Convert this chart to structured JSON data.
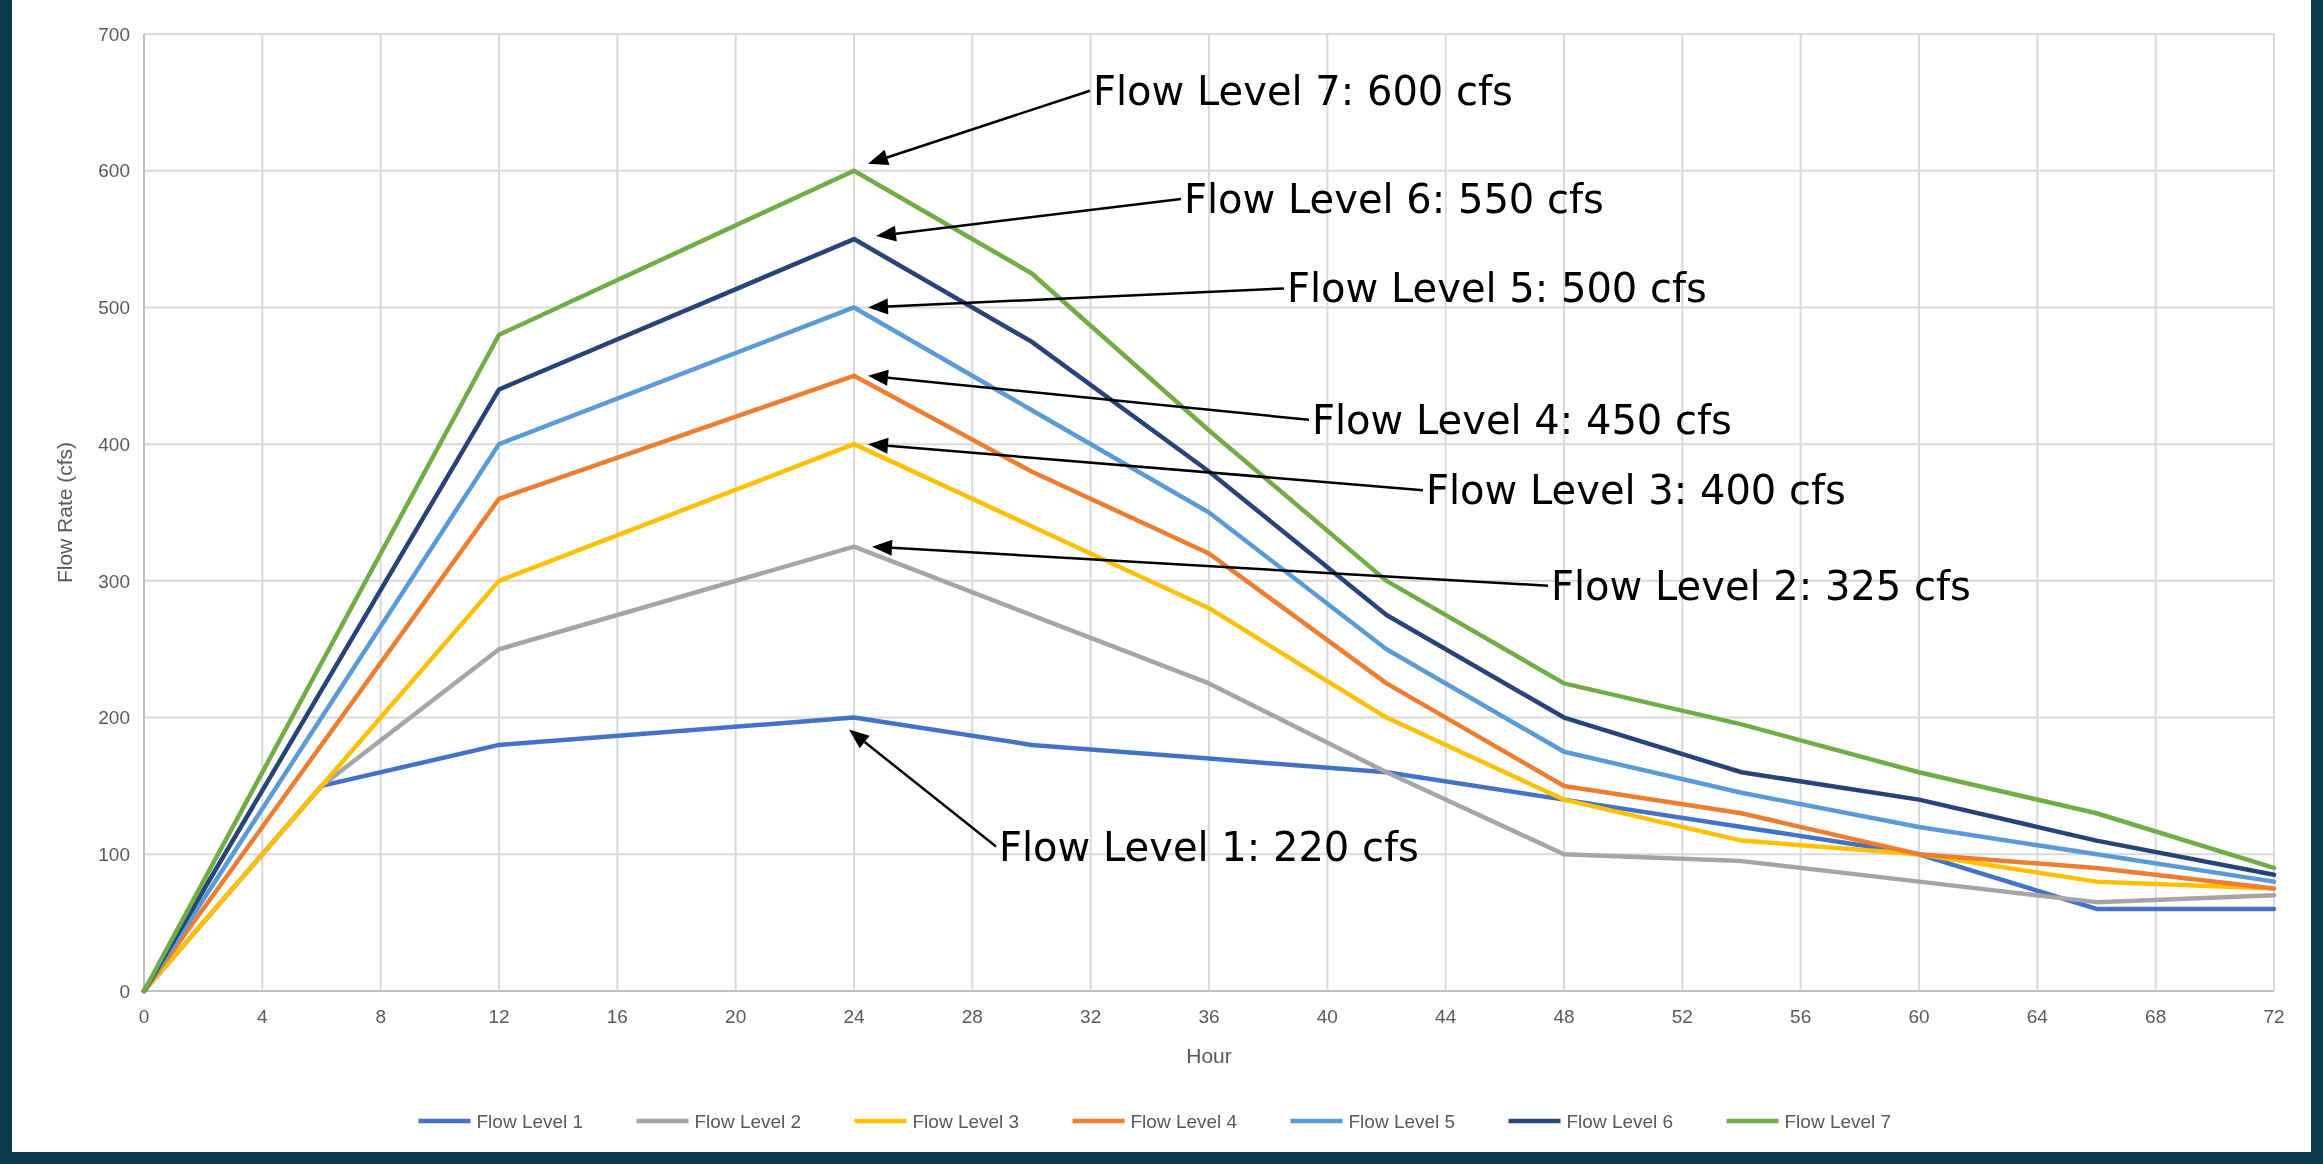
{
  "chart_data": {
    "type": "line",
    "xlabel": "Hour",
    "ylabel": "Flow Rate (cfs)",
    "xlim": [
      0,
      72
    ],
    "xticks": [
      0,
      4,
      8,
      12,
      16,
      20,
      24,
      28,
      32,
      36,
      40,
      44,
      48,
      52,
      56,
      60,
      64,
      68,
      72
    ],
    "ylim": [
      0,
      700
    ],
    "yticks": [
      0,
      100,
      200,
      300,
      400,
      500,
      600,
      700
    ],
    "grid": true,
    "legend": "bottom",
    "marker": "none",
    "line_style": "solid",
    "series": [
      {
        "name": "Flow Level 1",
        "color": "#4472c4",
        "x": [
          0,
          6,
          12,
          24,
          30,
          36,
          42,
          48,
          54,
          60,
          66,
          72
        ],
        "values": [
          0,
          150,
          180,
          200,
          180,
          170,
          160,
          140,
          120,
          100,
          60,
          60
        ]
      },
      {
        "name": "Flow Level 2",
        "color": "#a5a5a5",
        "x": [
          0,
          6,
          12,
          24,
          30,
          36,
          42,
          48,
          54,
          60,
          66,
          72
        ],
        "values": [
          0,
          150,
          250,
          325,
          275,
          225,
          160,
          100,
          95,
          80,
          65,
          70
        ]
      },
      {
        "name": "Flow Level 3",
        "color": "#ffc000",
        "x": [
          0,
          12,
          24,
          30,
          36,
          42,
          48,
          54,
          60,
          66,
          72
        ],
        "values": [
          0,
          300,
          400,
          340,
          280,
          200,
          140,
          110,
          100,
          80,
          75
        ]
      },
      {
        "name": "Flow Level 4",
        "color": "#ed7d31",
        "x": [
          0,
          12,
          24,
          30,
          36,
          42,
          48,
          54,
          60,
          66,
          72
        ],
        "values": [
          0,
          360,
          450,
          380,
          320,
          225,
          150,
          130,
          100,
          90,
          75
        ]
      },
      {
        "name": "Flow Level 5",
        "color": "#5b9bd5",
        "x": [
          0,
          12,
          24,
          30,
          36,
          42,
          48,
          54,
          60,
          66,
          72
        ],
        "values": [
          0,
          400,
          500,
          425,
          350,
          250,
          175,
          145,
          120,
          100,
          80
        ]
      },
      {
        "name": "Flow Level 6",
        "color": "#264478",
        "x": [
          0,
          12,
          24,
          30,
          36,
          42,
          48,
          54,
          60,
          66,
          72
        ],
        "values": [
          0,
          440,
          550,
          475,
          380,
          275,
          200,
          160,
          140,
          110,
          85
        ]
      },
      {
        "name": "Flow Level 7",
        "color": "#70ad47",
        "x": [
          0,
          12,
          24,
          30,
          36,
          42,
          48,
          54,
          60,
          66,
          72
        ],
        "values": [
          0,
          480,
          600,
          525,
          410,
          300,
          225,
          195,
          160,
          130,
          90
        ]
      }
    ],
    "annotations": [
      "Flow Level 7: 600 cfs",
      "Flow Level 6: 550 cfs",
      "Flow Level 5: 500 cfs",
      "Flow Level 4: 450 cfs",
      "Flow Level 3: 400 cfs",
      "Flow Level 2: 325 cfs",
      "Flow Level 1: 220 cfs"
    ]
  }
}
